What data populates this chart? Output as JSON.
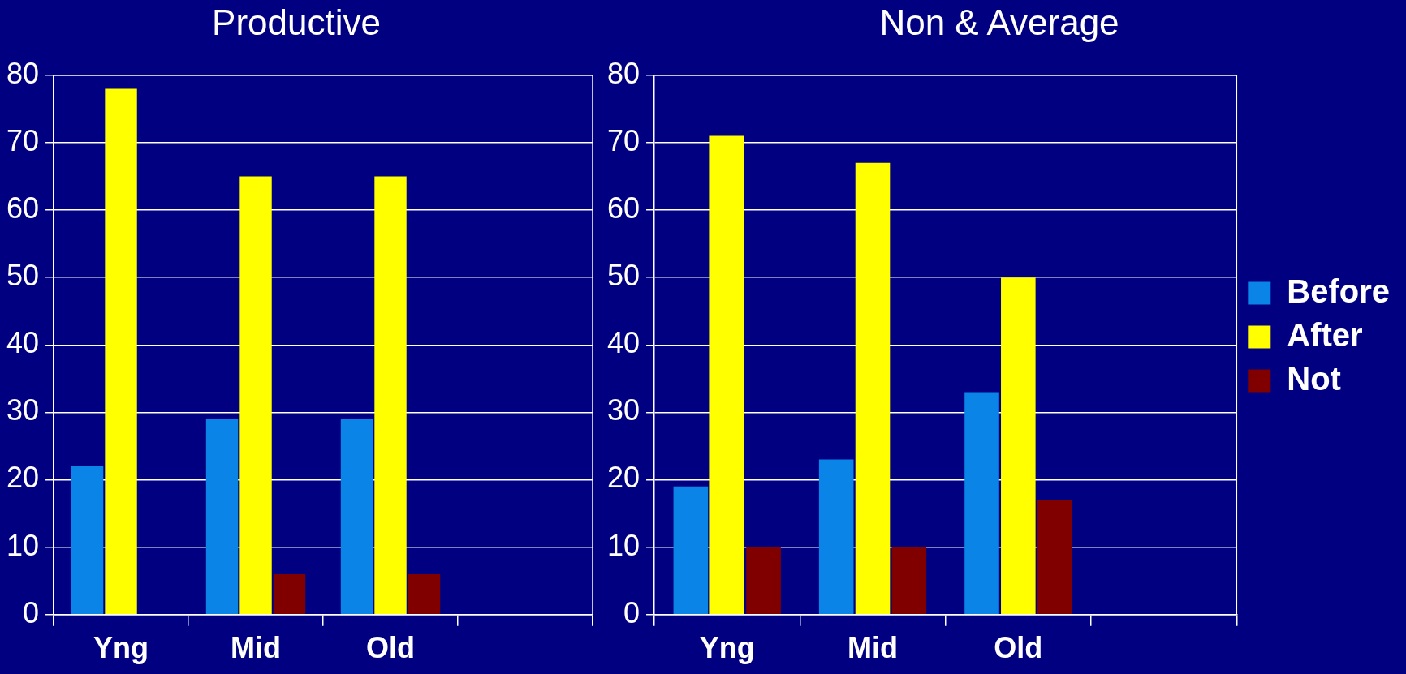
{
  "chart_data": [
    {
      "type": "bar",
      "title": "Productive",
      "categories": [
        "Yng",
        "Mid",
        "Old",
        null
      ],
      "series": [
        {
          "color": "#0a84e6",
          "values": [
            22,
            29,
            29,
            null
          ]
        },
        {
          "color": "#ffff00",
          "values": [
            78,
            65,
            65,
            null
          ]
        },
        {
          "color": "#800000",
          "values": [
            null,
            6,
            6,
            null
          ]
        }
      ],
      "ylim": [
        0,
        80
      ],
      "yticks": [
        0,
        10,
        20,
        30,
        40,
        50,
        60,
        70,
        80
      ],
      "grid": "y",
      "legend": false
    },
    {
      "type": "bar",
      "title": "Non & Average",
      "categories": [
        "Yng",
        "Mid",
        "Old",
        null
      ],
      "series": [
        {
          "name": "Before",
          "color": "#0a84e6",
          "values": [
            19,
            23,
            33,
            null
          ]
        },
        {
          "name": "After",
          "color": "#ffff00",
          "values": [
            71,
            67,
            50,
            null
          ]
        },
        {
          "name": "Not",
          "color": "#800000",
          "values": [
            10,
            10,
            17,
            null
          ]
        }
      ],
      "ylim": [
        0,
        80
      ],
      "yticks": [
        0,
        10,
        20,
        30,
        40,
        50,
        60,
        70,
        80
      ],
      "grid": "y",
      "legend": "right"
    }
  ]
}
